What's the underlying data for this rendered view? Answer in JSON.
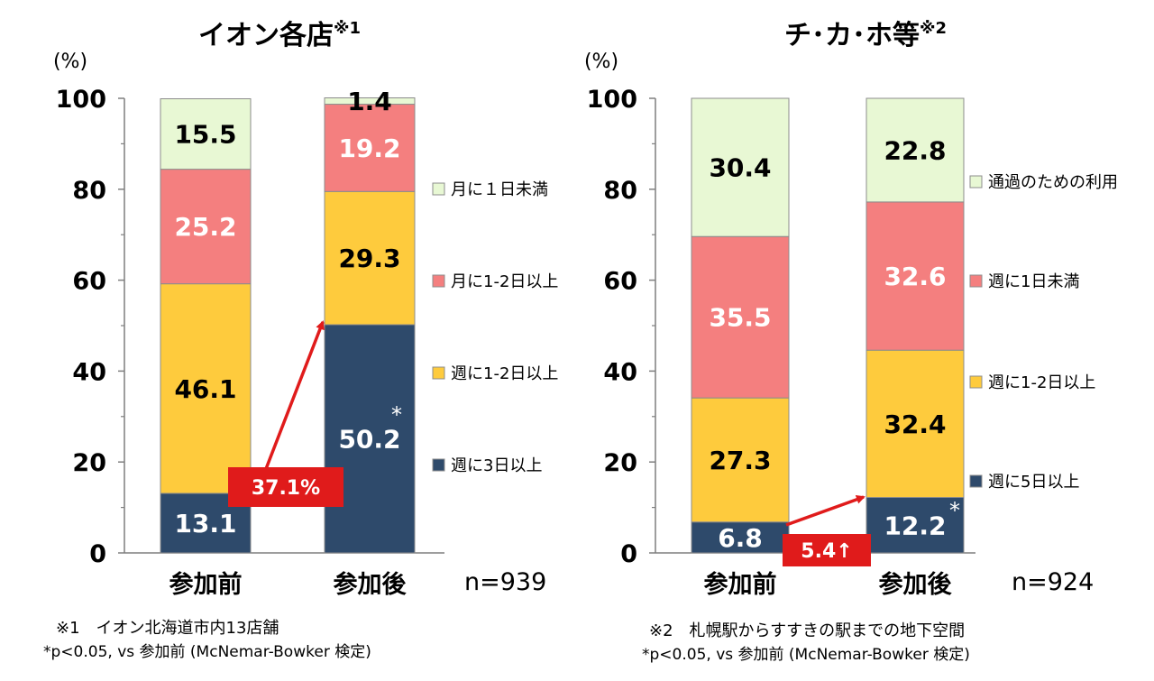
{
  "chart_data": [
    {
      "type": "bar",
      "stacked": true,
      "title": "イオン各店",
      "title_mark": "※1",
      "unit": "(%)",
      "ylim": [
        0,
        100
      ],
      "yticks": [
        "0",
        "20",
        "40",
        "60",
        "80",
        "100"
      ],
      "categories": [
        "参加前",
        "参加後"
      ],
      "series": [
        {
          "name": "週に3日以上",
          "color": "#2e4a6b",
          "label_color": "#ffffff",
          "values": [
            13.1,
            50.2
          ]
        },
        {
          "name": "週に1-2日以上",
          "color": "#fecb3d",
          "label_color": "#000000",
          "values": [
            46.1,
            29.3
          ]
        },
        {
          "name": "月に1-2日以上",
          "color": "#f47f7f",
          "label_color": "#ffffff",
          "values": [
            25.2,
            19.2
          ]
        },
        {
          "name": "月に１日未満",
          "color": "#e8f8d4",
          "label_color": "#000000",
          "values": [
            15.5,
            1.4
          ]
        }
      ],
      "significance_mark": "*",
      "callout": "37.1%",
      "n_label": "n=939",
      "notes": [
        "※1　イオン北海道市内13店舗",
        "*p<0.05, vs 参加前 (McNemar-Bowker 検定)"
      ]
    },
    {
      "type": "bar",
      "stacked": true,
      "title": "チ･カ･ホ等",
      "title_mark": "※2",
      "unit": "(%)",
      "ylim": [
        0,
        100
      ],
      "yticks": [
        "0",
        "20",
        "40",
        "60",
        "80",
        "100"
      ],
      "categories": [
        "参加前",
        "参加後"
      ],
      "series": [
        {
          "name": "週に5日以上",
          "color": "#2e4a6b",
          "label_color": "#ffffff",
          "values": [
            6.8,
            12.2
          ]
        },
        {
          "name": "週に1-2日以上",
          "color": "#fecb3d",
          "label_color": "#000000",
          "values": [
            27.3,
            32.4
          ]
        },
        {
          "name": "週に1日未満",
          "color": "#f47f7f",
          "label_color": "#ffffff",
          "values": [
            35.5,
            32.6
          ]
        },
        {
          "name": "通過のための利用",
          "color": "#e8f8d4",
          "label_color": "#000000",
          "values": [
            30.4,
            22.8
          ]
        }
      ],
      "significance_mark": "*",
      "callout": "5.4↑",
      "n_label": "n=924",
      "notes": [
        "※2　札幌駅からすすきの駅までの地下空間",
        "*p<0.05, vs 参加前 (McNemar-Bowker 検定)"
      ]
    }
  ]
}
